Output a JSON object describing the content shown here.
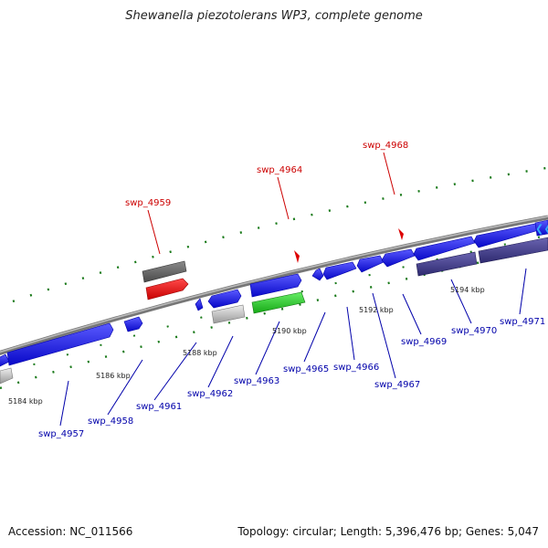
{
  "title": "Shewanella piezotolerans WP3, complete genome",
  "footer": {
    "accession": "Accession: NC_011566",
    "summary": "Topology: circular; Length: 5,396,476 bp; Genes: 5,047"
  },
  "scale_labels": [
    "5184 kbp",
    "5186 kbp",
    "5188 kbp",
    "5190 kbp",
    "5192 kbp",
    "5194 kbp"
  ],
  "genes_top": [
    "swp_4959",
    "swp_4964",
    "swp_4968"
  ],
  "genes_bottom": [
    "swp_4957",
    "swp_4958",
    "swp_4961",
    "swp_4962",
    "swp_4963",
    "swp_4965",
    "swp_4966",
    "swp_4967",
    "swp_4969",
    "swp_4970",
    "swp_4971"
  ],
  "colors": {
    "highlight_label": "#cc0000",
    "gene_label": "#0000aa",
    "forward_gene": "#1a1aee",
    "tick": "#1a7a1a",
    "backbone": "#8a8a8a"
  }
}
